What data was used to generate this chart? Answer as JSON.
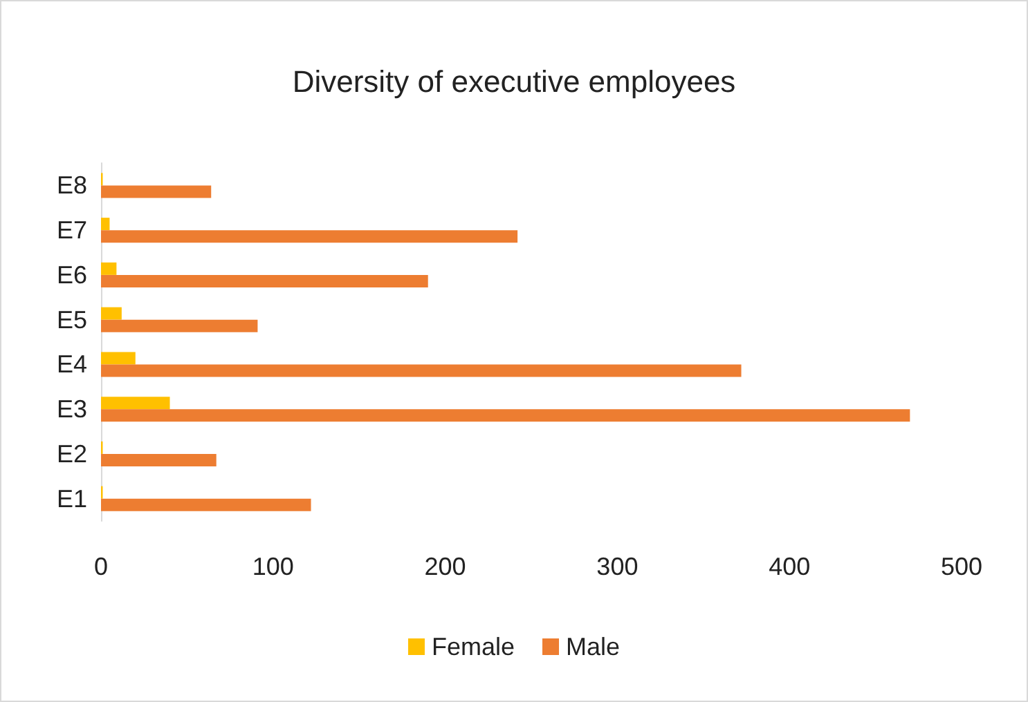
{
  "chart_data": {
    "type": "bar",
    "orientation": "horizontal",
    "title": "Diversity of executive employees",
    "categories": [
      "E8",
      "E7",
      "E6",
      "E5",
      "E4",
      "E3",
      "E2",
      "E1"
    ],
    "series": [
      {
        "name": "Female",
        "color": "#ffc000",
        "values": [
          1,
          5,
          9,
          12,
          20,
          40,
          1,
          1
        ]
      },
      {
        "name": "Male",
        "color": "#ed7d31",
        "values": [
          64,
          242,
          190,
          91,
          372,
          470,
          67,
          122
        ]
      }
    ],
    "xlim": [
      0,
      500
    ],
    "xticks": [
      0,
      100,
      200,
      300,
      400,
      500
    ],
    "grid": false,
    "legend": "bottom"
  }
}
